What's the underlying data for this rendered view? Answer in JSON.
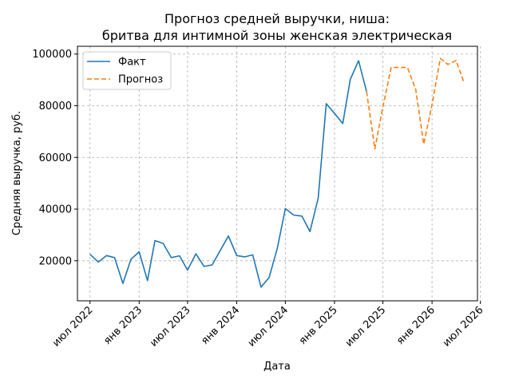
{
  "chart_data": {
    "type": "line",
    "title": "Прогноз средней выручки, ниша:",
    "subtitle": "бритва для интимной зоны женская электрическая",
    "xlabel": "Дата",
    "ylabel": "Средняя выручка, руб.",
    "grid": true,
    "legend_position": "top-left",
    "xlim": [
      "2022-05-15",
      "2026-06-20"
    ],
    "ylim": [
      4500,
      103000
    ],
    "x_ticks": [
      {
        "label": "июл 2022",
        "date": "2022-07-01"
      },
      {
        "label": "янв 2023",
        "date": "2023-01-01"
      },
      {
        "label": "июл 2023",
        "date": "2023-07-01"
      },
      {
        "label": "янв 2024",
        "date": "2024-01-01"
      },
      {
        "label": "июл 2024",
        "date": "2024-07-01"
      },
      {
        "label": "янв 2025",
        "date": "2025-01-01"
      },
      {
        "label": "июл 2025",
        "date": "2025-07-01"
      },
      {
        "label": "янв 2026",
        "date": "2026-01-01"
      },
      {
        "label": "июл 2026",
        "date": "2026-07-01"
      }
    ],
    "y_ticks": [
      {
        "label": "20000",
        "value": 20000
      },
      {
        "label": "40000",
        "value": 40000
      },
      {
        "label": "60000",
        "value": 60000
      },
      {
        "label": "80000",
        "value": 80000
      },
      {
        "label": "100000",
        "value": 100000
      }
    ],
    "series": [
      {
        "name": "Факт",
        "color": "#1f77b4",
        "dash": "solid",
        "points": [
          [
            "2022-07-01",
            22500
          ],
          [
            "2022-08-01",
            19500
          ],
          [
            "2022-09-01",
            22000
          ],
          [
            "2022-10-01",
            21200
          ],
          [
            "2022-11-01",
            11200
          ],
          [
            "2022-12-01",
            20500
          ],
          [
            "2023-01-01",
            23500
          ],
          [
            "2023-02-01",
            12300
          ],
          [
            "2023-03-01",
            27800
          ],
          [
            "2023-04-01",
            26700
          ],
          [
            "2023-05-01",
            21200
          ],
          [
            "2023-06-01",
            21900
          ],
          [
            "2023-07-01",
            16400
          ],
          [
            "2023-08-01",
            22700
          ],
          [
            "2023-09-01",
            17800
          ],
          [
            "2023-10-01",
            18400
          ],
          [
            "2023-12-01",
            29600
          ],
          [
            "2024-01-01",
            22000
          ],
          [
            "2024-02-01",
            21500
          ],
          [
            "2024-03-01",
            22300
          ],
          [
            "2024-04-01",
            9800
          ],
          [
            "2024-05-01",
            13500
          ],
          [
            "2024-06-01",
            24800
          ],
          [
            "2024-07-01",
            40200
          ],
          [
            "2024-08-01",
            37700
          ],
          [
            "2024-09-01",
            37300
          ],
          [
            "2024-10-01",
            31300
          ],
          [
            "2024-11-01",
            44200
          ],
          [
            "2024-12-01",
            80800
          ],
          [
            "2025-01-01",
            77000
          ],
          [
            "2025-02-01",
            73100
          ],
          [
            "2025-03-01",
            90200
          ],
          [
            "2025-04-01",
            97400
          ],
          [
            "2025-05-01",
            85500
          ]
        ]
      },
      {
        "name": "Прогноз",
        "color": "#ff7f0e",
        "dash": "dashed",
        "points": [
          [
            "2025-05-01",
            85500
          ],
          [
            "2025-06-01",
            63300
          ],
          [
            "2025-07-01",
            79500
          ],
          [
            "2025-08-01",
            94800
          ],
          [
            "2025-09-01",
            94800
          ],
          [
            "2025-10-01",
            94800
          ],
          [
            "2025-11-01",
            86300
          ],
          [
            "2025-12-01",
            65100
          ],
          [
            "2026-01-01",
            80500
          ],
          [
            "2026-02-01",
            98300
          ],
          [
            "2026-03-01",
            96000
          ],
          [
            "2026-04-01",
            97500
          ],
          [
            "2026-05-01",
            88800
          ]
        ]
      }
    ]
  }
}
